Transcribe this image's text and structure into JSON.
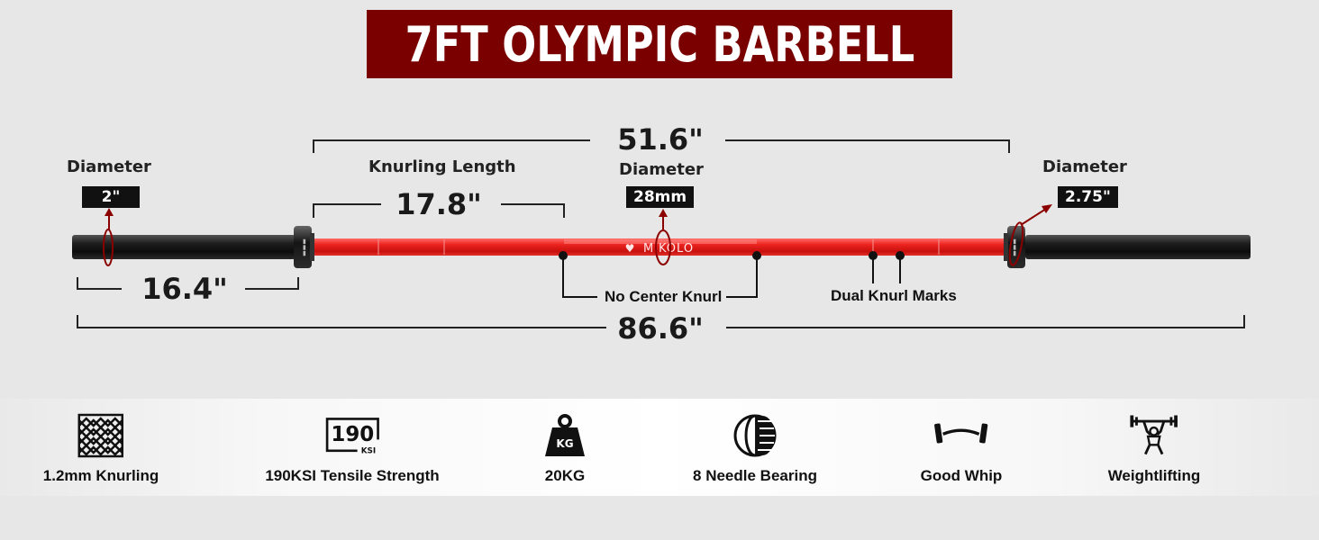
{
  "title": "7FT  OLYMPIC BARBELL",
  "brand": "MIKOLO",
  "dimensions": {
    "overall_length": "86.6\"",
    "shaft_length": "51.6\"",
    "knurling_length": "17.8\"",
    "sleeve_length": "16.4\"",
    "knurling_label": "Knurling Length"
  },
  "diameters": {
    "label": "Diameter",
    "sleeve_left": "2\"",
    "shaft": "28mm",
    "collar_right": "2.75\""
  },
  "callouts": {
    "center": "No Center Knurl",
    "dual_marks": "Dual Knurl Marks"
  },
  "features": [
    {
      "icon": "knurling-pattern-icon",
      "label": "1.2mm Knurling"
    },
    {
      "icon": "tensile-strength-icon",
      "label": "190KSI Tensile Strength",
      "icon_text": "190",
      "icon_subtext": "KSI"
    },
    {
      "icon": "kettle-weight-icon",
      "label": "20KG",
      "icon_text": "KG"
    },
    {
      "icon": "needle-bearing-icon",
      "label": "8 Needle Bearing"
    },
    {
      "icon": "bending-bar-icon",
      "label": "Good Whip"
    },
    {
      "icon": "weightlifter-icon",
      "label": "Weightlifting"
    }
  ],
  "colors": {
    "banner": "#7a0000",
    "shaft": "#e8201c",
    "sleeve": "#1a1a1a",
    "accent": "#8b0000"
  }
}
